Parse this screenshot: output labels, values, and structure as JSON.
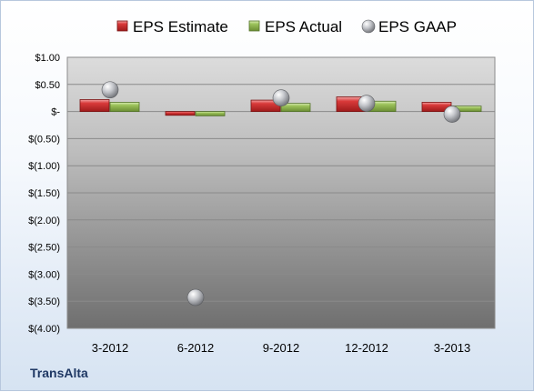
{
  "chart_data": {
    "type": "bar",
    "categories": [
      "3-2012",
      "6-2012",
      "9-2012",
      "12-2012",
      "3-2013"
    ],
    "series": [
      {
        "name": "EPS Estimate",
        "kind": "bar",
        "color": "#c0202a",
        "values": [
          0.22,
          -0.07,
          0.21,
          0.27,
          0.17
        ]
      },
      {
        "name": "EPS Actual",
        "kind": "bar",
        "color": "#8ab04a",
        "values": [
          0.17,
          -0.08,
          0.15,
          0.19,
          0.1
        ]
      },
      {
        "name": "EPS GAAP",
        "kind": "marker",
        "color": "#b9bcc2",
        "values": [
          0.4,
          -3.43,
          0.25,
          0.15,
          -0.05
        ]
      }
    ],
    "yticks": [
      "$1.00",
      "$0.50",
      "$-",
      "$(0.50)",
      "$(1.00)",
      "$(1.50)",
      "$(2.00)",
      "$(2.50)",
      "$(3.00)",
      "$(3.50)",
      "$(4.00)"
    ],
    "ylim": [
      -4.0,
      1.0
    ],
    "ystep": 0.5,
    "grid": true,
    "legend": "top",
    "xlabel": "",
    "ylabel": ""
  },
  "company": "TransAlta"
}
